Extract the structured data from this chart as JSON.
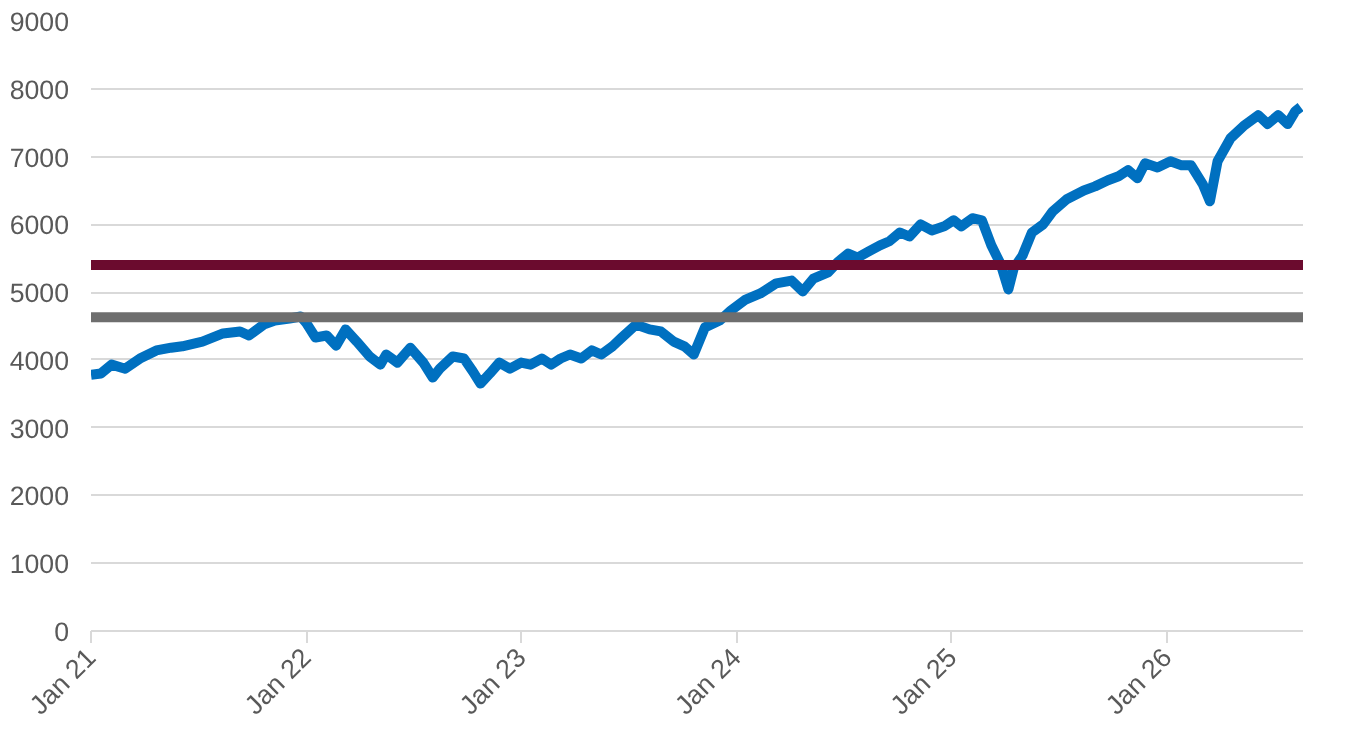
{
  "chart_data": {
    "type": "line",
    "grid": "y",
    "line_style": "solid",
    "marker": "none",
    "xlim": [
      "2021-01-01",
      "2026-08-20"
    ],
    "xticks": [
      {
        "value": "2021-01-01",
        "label": "Jan 21"
      },
      {
        "value": "2022-01-01",
        "label": "Jan 22"
      },
      {
        "value": "2023-01-01",
        "label": "Jan 23"
      },
      {
        "value": "2024-01-01",
        "label": "Jan 24"
      },
      {
        "value": "2025-01-01",
        "label": "Jan 25"
      },
      {
        "value": "2026-01-01",
        "label": "Jan 26"
      }
    ],
    "ylim": [
      0,
      9000
    ],
    "yticks": [
      0,
      1000,
      2000,
      3000,
      4000,
      5000,
      6000,
      7000,
      8000,
      9000
    ],
    "ref_lines": [
      {
        "axis": "y",
        "value": 5400,
        "color": "#6b0b2e"
      },
      {
        "axis": "y",
        "value": 4630,
        "color": "#6e6e6e"
      }
    ],
    "series": [
      {
        "color": "#0070c0",
        "x": [
          "2021-01-01",
          "2021-01-18",
          "2021-02-05",
          "2021-02-28",
          "2021-03-25",
          "2021-04-22",
          "2021-05-17",
          "2021-06-05",
          "2021-07-09",
          "2021-08-13",
          "2021-09-11",
          "2021-09-26",
          "2021-10-21",
          "2021-11-09",
          "2021-12-04",
          "2021-12-23",
          "2022-01-01",
          "2022-01-17",
          "2022-02-05",
          "2022-02-21",
          "2022-03-09",
          "2022-03-28",
          "2022-04-19",
          "2022-05-07",
          "2022-05-17",
          "2022-06-05",
          "2022-06-27",
          "2022-07-19",
          "2022-08-04",
          "2022-08-16",
          "2022-09-07",
          "2022-09-26",
          "2022-10-11",
          "2022-10-24",
          "2022-11-09",
          "2022-11-25",
          "2022-12-13",
          "2023-01-01",
          "2023-01-17",
          "2023-02-05",
          "2023-02-21",
          "2023-03-09",
          "2023-03-25",
          "2023-04-13",
          "2023-05-01",
          "2023-05-17",
          "2023-06-05",
          "2023-06-21",
          "2023-07-15",
          "2023-08-07",
          "2023-08-26",
          "2023-09-17",
          "2023-10-05",
          "2023-10-21",
          "2023-11-09",
          "2023-12-04",
          "2023-12-23",
          "2024-01-17",
          "2024-02-11",
          "2024-03-09",
          "2024-04-04",
          "2024-04-23",
          "2024-05-11",
          "2024-06-05",
          "2024-06-21",
          "2024-07-09",
          "2024-07-25",
          "2024-08-13",
          "2024-09-01",
          "2024-09-17",
          "2024-10-05",
          "2024-10-21",
          "2024-11-09",
          "2024-11-28",
          "2024-12-19",
          "2025-01-04",
          "2025-01-17",
          "2025-02-05",
          "2025-02-21",
          "2025-03-09",
          "2025-03-25",
          "2025-04-07",
          "2025-04-16",
          "2025-05-01",
          "2025-05-17",
          "2025-06-05",
          "2025-06-21",
          "2025-07-15",
          "2025-08-13",
          "2025-09-01",
          "2025-09-23",
          "2025-10-11",
          "2025-10-27",
          "2025-11-12",
          "2025-11-25",
          "2025-12-16",
          "2026-01-07",
          "2026-01-26",
          "2026-02-11",
          "2026-03-03",
          "2026-03-15",
          "2026-03-28",
          "2026-04-19",
          "2026-05-11",
          "2026-06-05",
          "2026-06-21",
          "2026-07-09",
          "2026-07-25",
          "2026-08-07",
          "2026-08-16"
        ],
        "values": [
          3780,
          3800,
          3930,
          3870,
          4020,
          4140,
          4180,
          4200,
          4270,
          4390,
          4420,
          4360,
          4520,
          4580,
          4610,
          4640,
          4550,
          4330,
          4360,
          4210,
          4450,
          4270,
          4050,
          3930,
          4080,
          3960,
          4180,
          3960,
          3740,
          3870,
          4050,
          4020,
          3830,
          3650,
          3800,
          3960,
          3870,
          3960,
          3930,
          4020,
          3930,
          4020,
          4080,
          4020,
          4140,
          4080,
          4200,
          4330,
          4520,
          4450,
          4420,
          4270,
          4200,
          4080,
          4480,
          4580,
          4730,
          4890,
          4980,
          5130,
          5170,
          5010,
          5200,
          5290,
          5440,
          5570,
          5510,
          5600,
          5690,
          5750,
          5880,
          5820,
          6000,
          5910,
          5970,
          6060,
          5970,
          6090,
          6060,
          5690,
          5410,
          5040,
          5350,
          5540,
          5880,
          6000,
          6190,
          6370,
          6500,
          6560,
          6650,
          6710,
          6800,
          6680,
          6900,
          6840,
          6930,
          6870,
          6870,
          6590,
          6340,
          6930,
          7270,
          7450,
          7610,
          7480,
          7610,
          7480,
          7670,
          7730
        ]
      }
    ]
  }
}
